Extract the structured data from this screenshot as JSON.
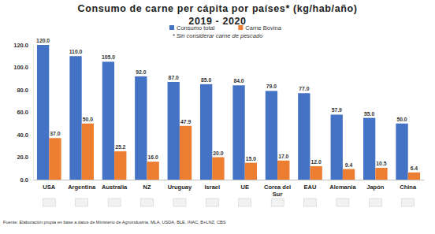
{
  "chart_data": {
    "type": "bar",
    "title": "Consumo de carne per cápita por países* (kg/hab/año)",
    "subtitle": "2019 - 2020",
    "annotations": [
      "* Sin considerar carne de pescado",
      "Fuente: Elaboración propia en base a datos de Ministerio de Agroindustria, MLA, USDA, BLE, INAC, B+LNZ, CBS"
    ],
    "categories": [
      "USA",
      "Argentina",
      "Australia",
      "NZ",
      "Uruguay",
      "Israel",
      "UE",
      "Corea del Sur",
      "EAU",
      "Alemania",
      "Japón",
      "China"
    ],
    "series": [
      {
        "name": "Consumo total",
        "color": "#4472c4",
        "values": [
          120,
          110,
          105,
          92,
          87,
          85,
          84,
          79,
          77,
          57.9,
          55,
          50
        ],
        "value_labels": [
          "120.0",
          "110.0",
          "105.0",
          "92.0",
          "87.0",
          "85.0",
          "84.0",
          "79.0",
          "77.0",
          "57.9",
          "55.0",
          "50.0"
        ]
      },
      {
        "name": "Carne Bovina",
        "color": "#ed7d31",
        "values": [
          37,
          50,
          25.2,
          16,
          47.9,
          20,
          15,
          17,
          12,
          9.4,
          10.5,
          6.4
        ],
        "value_labels": [
          "37.0",
          "50.0",
          "25.2",
          "16.0",
          "47.9",
          "20.0",
          "15.0",
          "17.0",
          "12.0",
          "9.4",
          "10.5",
          "6.4"
        ]
      }
    ],
    "ylim": [
      0,
      120
    ],
    "yticks": [
      {
        "value": 0,
        "label": "0.0"
      },
      {
        "value": 20,
        "label": "20.0"
      },
      {
        "value": 40,
        "label": "40.0"
      },
      {
        "value": 60,
        "label": "60.0"
      },
      {
        "value": 80,
        "label": "80.0"
      },
      {
        "value": 100,
        "label": "100.0"
      },
      {
        "value": 120,
        "label": "120.0"
      }
    ],
    "grid": false,
    "legend": "top",
    "data_labels": true
  }
}
